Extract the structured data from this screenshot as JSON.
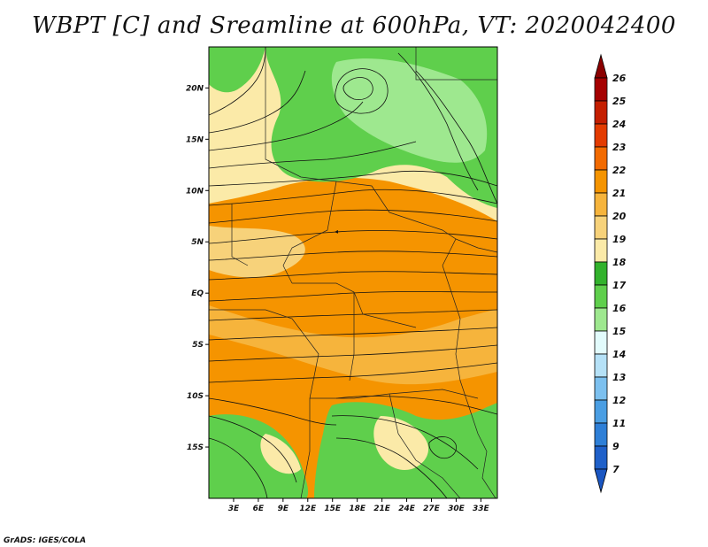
{
  "title": "WBPT [C] and Sreamline at 600hPa, VT: 2020042400",
  "footer": "GrADS: IGES/COLA",
  "map": {
    "lon_labels": [
      "3E",
      "6E",
      "9E",
      "12E",
      "15E",
      "18E",
      "21E",
      "24E",
      "27E",
      "30E",
      "33E"
    ],
    "lat_labels": [
      "20N",
      "15N",
      "10N",
      "5N",
      "EQ",
      "5S",
      "10S",
      "15S"
    ],
    "lon_values": [
      3,
      6,
      9,
      12,
      15,
      18,
      21,
      24,
      27,
      30,
      33
    ],
    "lat_values": [
      20,
      15,
      10,
      5,
      0,
      -5,
      -10,
      -15
    ],
    "lon_range": [
      0,
      35
    ],
    "lat_range": [
      -20,
      24
    ]
  },
  "colorbar": {
    "labels": [
      "26",
      "25",
      "24",
      "23",
      "22",
      "21",
      "20",
      "19",
      "18",
      "17",
      "16",
      "15",
      "14",
      "13",
      "12",
      "11",
      "9",
      "7"
    ],
    "colors": [
      "#a50000",
      "#c41e00",
      "#e33b00",
      "#f26a00",
      "#f59400",
      "#f6b43c",
      "#f7d27a",
      "#fbeaa8",
      "#32b22c",
      "#5fcf4c",
      "#9ee88f",
      "#e2fbfc",
      "#b5e1f7",
      "#7cc0ef",
      "#4a9ee3",
      "#2e7fd7",
      "#1f60c9"
    ],
    "top_arrow_color": "#8b0000",
    "bottom_arrow_color": "#1a56c2"
  },
  "field_colors": {
    "green_dark": "#32b22c",
    "green_mid": "#5fcf4c",
    "green_light": "#9ee88f",
    "yellow_pale": "#fbeaa8",
    "yellow": "#f7d27a",
    "orange_light": "#f6b43c",
    "orange": "#f59400"
  }
}
